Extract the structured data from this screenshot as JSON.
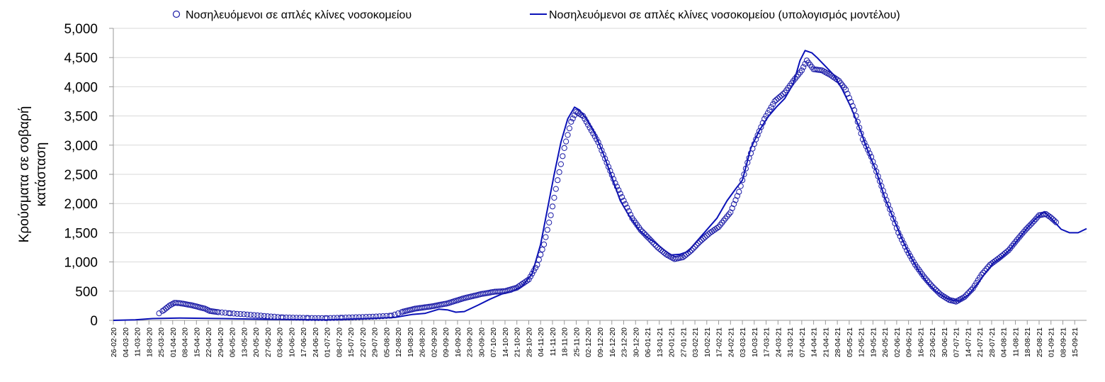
{
  "chart_data": {
    "type": "line",
    "title": "",
    "xlabel": "",
    "ylabel_lines": [
      "Κρούσματα σε σοβαρή",
      "κατάσταση"
    ],
    "ylim": [
      0,
      5000
    ],
    "yticks": [
      0,
      500,
      1000,
      1500,
      2000,
      2500,
      3000,
      3500,
      4000,
      4500,
      5000
    ],
    "ytick_labels": [
      "0",
      "500",
      "1,000",
      "1,500",
      "2,000",
      "2,500",
      "3,000",
      "3,500",
      "4,000",
      "4,500",
      "5,000"
    ],
    "x_start": "2020-02-26",
    "x_end": "2021-09-22",
    "xtick_labels": [
      "26-02-20",
      "04-03-20",
      "11-03-20",
      "18-03-20",
      "25-03-20",
      "01-04-20",
      "08-04-20",
      "15-04-20",
      "22-04-20",
      "29-04-20",
      "06-05-20",
      "13-05-20",
      "20-05-20",
      "27-05-20",
      "03-06-20",
      "10-06-20",
      "17-06-20",
      "24-06-20",
      "01-07-20",
      "08-07-20",
      "15-07-20",
      "22-07-20",
      "29-07-20",
      "05-08-20",
      "12-08-20",
      "19-08-20",
      "26-08-20",
      "02-09-20",
      "09-09-20",
      "16-09-20",
      "23-09-20",
      "30-09-20",
      "07-10-20",
      "14-10-20",
      "21-10-20",
      "28-10-20",
      "04-11-20",
      "11-11-20",
      "18-11-20",
      "25-11-20",
      "02-12-20",
      "09-12-20",
      "16-12-20",
      "23-12-20",
      "30-12-20",
      "06-01-21",
      "13-01-21",
      "20-01-21",
      "27-01-21",
      "03-02-21",
      "10-02-21",
      "17-02-21",
      "24-02-21",
      "03-03-21",
      "10-03-21",
      "17-03-21",
      "24-03-21",
      "31-03-21",
      "07-04-21",
      "14-04-21",
      "21-04-21",
      "28-04-21",
      "05-05-21",
      "12-05-21",
      "19-05-21",
      "26-05-21",
      "02-06-21",
      "09-06-21",
      "16-06-21",
      "23-06-21",
      "30-06-21",
      "07-07-21",
      "14-07-21",
      "21-07-21",
      "28-07-21",
      "04-08-21",
      "11-08-21",
      "18-08-21",
      "25-08-21",
      "01-09-21",
      "08-09-21",
      "15-09-21"
    ],
    "grid": true,
    "legend_position": "top",
    "series": [
      {
        "name": "Νοσηλευόμενοι σε απλές κλίνες νοσοκομείου",
        "kind": "scatter",
        "marker": "open-circle",
        "color": "#1a1aa6",
        "x_end": "2021-09-01",
        "points": [
          [
            "2020-03-24",
            120
          ],
          [
            "2020-03-27",
            180
          ],
          [
            "2020-03-30",
            250
          ],
          [
            "2020-04-02",
            300
          ],
          [
            "2020-04-05",
            295
          ],
          [
            "2020-04-08",
            280
          ],
          [
            "2020-04-12",
            260
          ],
          [
            "2020-04-16",
            230
          ],
          [
            "2020-04-20",
            200
          ],
          [
            "2020-04-23",
            160
          ],
          [
            "2020-04-28",
            140
          ],
          [
            "2020-05-05",
            120
          ],
          [
            "2020-05-15",
            100
          ],
          [
            "2020-05-25",
            75
          ],
          [
            "2020-06-05",
            50
          ],
          [
            "2020-06-20",
            40
          ],
          [
            "2020-07-01",
            38
          ],
          [
            "2020-07-10",
            45
          ],
          [
            "2020-07-20",
            55
          ],
          [
            "2020-07-30",
            65
          ],
          [
            "2020-08-08",
            80
          ],
          [
            "2020-08-15",
            150
          ],
          [
            "2020-08-22",
            200
          ],
          [
            "2020-09-01",
            240
          ],
          [
            "2020-09-10",
            290
          ],
          [
            "2020-09-20",
            380
          ],
          [
            "2020-09-30",
            450
          ],
          [
            "2020-10-08",
            490
          ],
          [
            "2020-10-14",
            500
          ],
          [
            "2020-10-21",
            560
          ],
          [
            "2020-10-28",
            700
          ],
          [
            "2020-11-02",
            950
          ],
          [
            "2020-11-06",
            1300
          ],
          [
            "2020-11-10",
            1800
          ],
          [
            "2020-11-14",
            2400
          ],
          [
            "2020-11-18",
            2950
          ],
          [
            "2020-11-22",
            3400
          ],
          [
            "2020-11-25",
            3570
          ],
          [
            "2020-11-29",
            3500
          ],
          [
            "2020-12-03",
            3300
          ],
          [
            "2020-12-08",
            3050
          ],
          [
            "2020-12-13",
            2700
          ],
          [
            "2020-12-18",
            2350
          ],
          [
            "2020-12-23",
            2050
          ],
          [
            "2020-12-28",
            1750
          ],
          [
            "2021-01-02",
            1550
          ],
          [
            "2021-01-07",
            1400
          ],
          [
            "2021-01-12",
            1250
          ],
          [
            "2021-01-17",
            1130
          ],
          [
            "2021-01-22",
            1050
          ],
          [
            "2021-01-27",
            1080
          ],
          [
            "2021-02-01",
            1200
          ],
          [
            "2021-02-06",
            1350
          ],
          [
            "2021-02-12",
            1500
          ],
          [
            "2021-02-17",
            1600
          ],
          [
            "2021-02-24",
            1850
          ],
          [
            "2021-03-01",
            2200
          ],
          [
            "2021-03-06",
            2700
          ],
          [
            "2021-03-11",
            3100
          ],
          [
            "2021-03-16",
            3450
          ],
          [
            "2021-03-22",
            3750
          ],
          [
            "2021-03-28",
            3900
          ],
          [
            "2021-04-02",
            4100
          ],
          [
            "2021-04-07",
            4280
          ],
          [
            "2021-04-10",
            4450
          ],
          [
            "2021-04-14",
            4300
          ],
          [
            "2021-04-19",
            4280
          ],
          [
            "2021-04-24",
            4200
          ],
          [
            "2021-04-29",
            4100
          ],
          [
            "2021-05-03",
            3950
          ],
          [
            "2021-05-08",
            3600
          ],
          [
            "2021-05-13",
            3100
          ],
          [
            "2021-05-18",
            2800
          ],
          [
            "2021-05-24",
            2300
          ],
          [
            "2021-05-29",
            1900
          ],
          [
            "2021-06-03",
            1500
          ],
          [
            "2021-06-08",
            1200
          ],
          [
            "2021-06-13",
            950
          ],
          [
            "2021-06-18",
            750
          ],
          [
            "2021-06-23",
            580
          ],
          [
            "2021-06-28",
            440
          ],
          [
            "2021-07-03",
            350
          ],
          [
            "2021-07-07",
            320
          ],
          [
            "2021-07-12",
            400
          ],
          [
            "2021-07-17",
            550
          ],
          [
            "2021-07-22",
            780
          ],
          [
            "2021-07-27",
            950
          ],
          [
            "2021-08-02",
            1080
          ],
          [
            "2021-08-07",
            1200
          ],
          [
            "2021-08-12",
            1380
          ],
          [
            "2021-08-17",
            1550
          ],
          [
            "2021-08-22",
            1700
          ],
          [
            "2021-08-25",
            1800
          ],
          [
            "2021-08-29",
            1820
          ],
          [
            "2021-09-01",
            1760
          ],
          [
            "2021-09-04",
            1680
          ]
        ]
      },
      {
        "name": "Νοσηλευόμενοι σε απλές κλίνες νοσοκομείου (υπολογισμός μοντέλου)",
        "kind": "line",
        "color": "#0b12b8",
        "points": [
          [
            "2020-02-26",
            0
          ],
          [
            "2020-03-10",
            10
          ],
          [
            "2020-03-20",
            30
          ],
          [
            "2020-04-05",
            40
          ],
          [
            "2020-05-01",
            30
          ],
          [
            "2020-06-01",
            15
          ],
          [
            "2020-07-01",
            10
          ],
          [
            "2020-07-25",
            30
          ],
          [
            "2020-08-10",
            50
          ],
          [
            "2020-08-20",
            100
          ],
          [
            "2020-08-28",
            120
          ],
          [
            "2020-09-05",
            190
          ],
          [
            "2020-09-10",
            180
          ],
          [
            "2020-09-15",
            140
          ],
          [
            "2020-09-20",
            150
          ],
          [
            "2020-09-28",
            260
          ],
          [
            "2020-10-05",
            360
          ],
          [
            "2020-10-12",
            450
          ],
          [
            "2020-10-18",
            490
          ],
          [
            "2020-10-24",
            580
          ],
          [
            "2020-10-30",
            800
          ],
          [
            "2020-11-04",
            1300
          ],
          [
            "2020-11-08",
            1900
          ],
          [
            "2020-11-12",
            2500
          ],
          [
            "2020-11-16",
            3050
          ],
          [
            "2020-11-20",
            3450
          ],
          [
            "2020-11-24",
            3650
          ],
          [
            "2020-11-27",
            3600
          ],
          [
            "2020-12-01",
            3450
          ],
          [
            "2020-12-06",
            3200
          ],
          [
            "2020-12-11",
            2850
          ],
          [
            "2020-12-16",
            2450
          ],
          [
            "2020-12-21",
            2050
          ],
          [
            "2020-12-26",
            1800
          ],
          [
            "2021-01-01",
            1550
          ],
          [
            "2021-01-06",
            1420
          ],
          [
            "2021-01-11",
            1320
          ],
          [
            "2021-01-16",
            1200
          ],
          [
            "2021-01-20",
            1120
          ],
          [
            "2021-01-25",
            1130
          ],
          [
            "2021-01-30",
            1180
          ],
          [
            "2021-02-04",
            1350
          ],
          [
            "2021-02-10",
            1550
          ],
          [
            "2021-02-16",
            1750
          ],
          [
            "2021-02-22",
            2050
          ],
          [
            "2021-02-27",
            2250
          ],
          [
            "2021-03-03",
            2400
          ],
          [
            "2021-03-08",
            2950
          ],
          [
            "2021-03-13",
            3250
          ],
          [
            "2021-03-18",
            3480
          ],
          [
            "2021-03-23",
            3650
          ],
          [
            "2021-03-28",
            3800
          ],
          [
            "2021-04-02",
            4050
          ],
          [
            "2021-04-06",
            4450
          ],
          [
            "2021-04-09",
            4620
          ],
          [
            "2021-04-13",
            4580
          ],
          [
            "2021-04-16",
            4500
          ],
          [
            "2021-04-21",
            4350
          ],
          [
            "2021-04-26",
            4200
          ],
          [
            "2021-05-01",
            3950
          ],
          [
            "2021-05-06",
            3650
          ],
          [
            "2021-05-11",
            3300
          ],
          [
            "2021-05-16",
            2900
          ],
          [
            "2021-05-21",
            2550
          ],
          [
            "2021-05-26",
            2100
          ],
          [
            "2021-05-31",
            1750
          ],
          [
            "2021-06-05",
            1400
          ],
          [
            "2021-06-10",
            1100
          ],
          [
            "2021-06-15",
            850
          ],
          [
            "2021-06-20",
            650
          ],
          [
            "2021-06-25",
            500
          ],
          [
            "2021-06-30",
            400
          ],
          [
            "2021-07-05",
            340
          ],
          [
            "2021-07-09",
            330
          ],
          [
            "2021-07-14",
            430
          ],
          [
            "2021-07-19",
            600
          ],
          [
            "2021-07-24",
            800
          ],
          [
            "2021-07-29",
            980
          ],
          [
            "2021-08-03",
            1080
          ],
          [
            "2021-08-08",
            1220
          ],
          [
            "2021-08-13",
            1400
          ],
          [
            "2021-08-18",
            1580
          ],
          [
            "2021-08-23",
            1740
          ],
          [
            "2021-08-28",
            1860
          ],
          [
            "2021-09-02",
            1720
          ],
          [
            "2021-09-07",
            1560
          ],
          [
            "2021-09-12",
            1500
          ],
          [
            "2021-09-17",
            1500
          ],
          [
            "2021-09-22",
            1570
          ]
        ]
      }
    ]
  }
}
